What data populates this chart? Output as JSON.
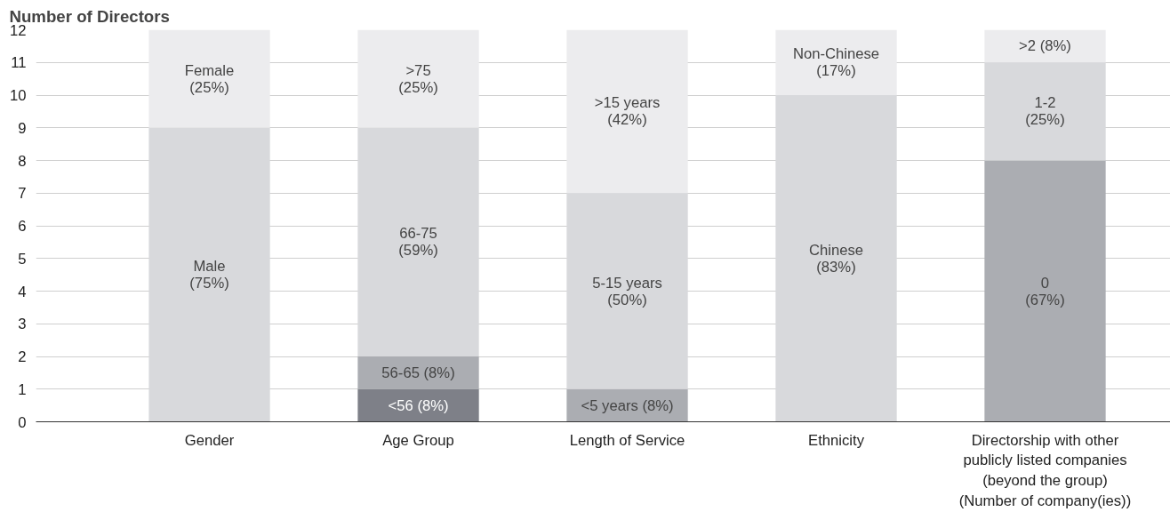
{
  "chart_data": {
    "type": "bar",
    "stacked": true,
    "ylabel": "Number of Directors",
    "categories": [
      "Gender",
      "Age Group",
      "Length of Service",
      "Ethnicity",
      "Directorship with other\npublicly listed companies\n(beyond the group)\n(Number of company(ies))"
    ],
    "series": [
      {
        "name": "<56 (8%)",
        "color": "#7e8088",
        "values": [
          null,
          1,
          null,
          null,
          null
        ]
      },
      {
        "name": "56-65 (8%)",
        "color": "#abadb2",
        "values": [
          null,
          1,
          null,
          null,
          null
        ]
      },
      {
        "name": "<5 years (8%)",
        "color": "#abadb2",
        "values": [
          null,
          null,
          1,
          null,
          null
        ]
      },
      {
        "name": "0\n(67%)",
        "color": "#abadb2",
        "values": [
          null,
          null,
          null,
          null,
          8
        ]
      },
      {
        "name": "Male\n(75%)",
        "color": "#d8d9dc",
        "values": [
          9,
          null,
          null,
          null,
          null
        ]
      },
      {
        "name": "66-75\n(59%)",
        "color": "#d8d9dc",
        "values": [
          null,
          7,
          null,
          null,
          null
        ]
      },
      {
        "name": "5-15 years\n(50%)",
        "color": "#d8d9dc",
        "values": [
          null,
          null,
          6,
          null,
          null
        ]
      },
      {
        "name": "Chinese\n(83%)",
        "color": "#d8d9dc",
        "values": [
          null,
          null,
          null,
          10,
          null
        ]
      },
      {
        "name": "1-2\n(25%)",
        "color": "#d8d9dc",
        "values": [
          null,
          null,
          null,
          null,
          3
        ]
      },
      {
        "name": "Female\n(25%)",
        "color": "#ececee",
        "values": [
          3,
          null,
          null,
          null,
          null
        ]
      },
      {
        "name": ">75\n(25%)",
        "color": "#ececee",
        "values": [
          null,
          3,
          null,
          null,
          null
        ]
      },
      {
        "name": ">15 years\n(42%)",
        "color": "#ececee",
        "values": [
          null,
          null,
          5,
          null,
          null
        ]
      },
      {
        "name": "Non-Chinese\n(17%)",
        "color": "#ececee",
        "values": [
          null,
          null,
          null,
          2,
          null
        ]
      },
      {
        "name": ">2 (8%)",
        "color": "#ececee",
        "values": [
          null,
          null,
          null,
          null,
          1
        ]
      }
    ],
    "ylim": [
      0,
      12
    ],
    "yticks": [
      0,
      1,
      2,
      3,
      4,
      5,
      6,
      7,
      8,
      9,
      10,
      11,
      12
    ],
    "grid": "y",
    "legend": false
  }
}
